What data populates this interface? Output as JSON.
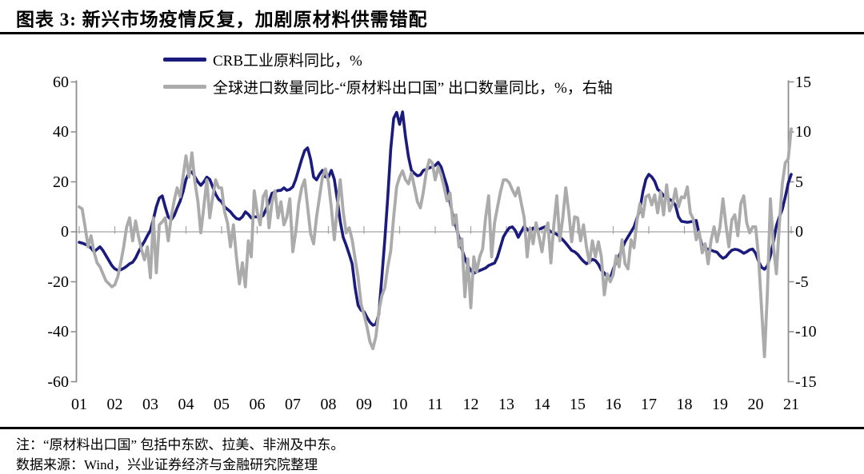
{
  "header": {
    "title": "图表 3: 新兴市场疫情反复，加剧原材料供需错配"
  },
  "legend": {
    "items": [
      {
        "label": "CRB工业原料同比，%",
        "color": "#1B1B7E"
      },
      {
        "label": "全球进口数量同比-“原材料出口国” 出口数量同比，%，右轴",
        "color": "#ABABAB"
      }
    ]
  },
  "axes": {
    "left_ticks": [
      "60",
      "40",
      "20",
      "0",
      "-20",
      "-40",
      "-60"
    ],
    "right_ticks": [
      "15",
      "10",
      "5",
      "0",
      "-5",
      "-10",
      "-15"
    ],
    "x_ticks": [
      "01",
      "02",
      "03",
      "04",
      "05",
      "06",
      "07",
      "08",
      "09",
      "10",
      "11",
      "12",
      "13",
      "14",
      "15",
      "16",
      "17",
      "18",
      "19",
      "20",
      "21"
    ]
  },
  "notes": {
    "line1": "注：“原材料出口国” 包括中东欧、拉美、非洲及中东。",
    "line2": "数据来源：Wind，兴业证券经济与金融研究院整理"
  },
  "chart_data": {
    "type": "line",
    "title": "图表 3: 新兴市场疫情反复，加剧原材料供需错配",
    "x_start": "2001-01",
    "x_end": "2021-01",
    "frequency": "monthly",
    "x_tick_years": [
      "01",
      "02",
      "03",
      "04",
      "05",
      "06",
      "07",
      "08",
      "09",
      "10",
      "11",
      "12",
      "13",
      "14",
      "15",
      "16",
      "17",
      "18",
      "19",
      "20",
      "21"
    ],
    "left_ylim": [
      -60,
      60
    ],
    "right_ylim": [
      -15,
      15
    ],
    "grid": "zero-line-only",
    "legend_position": "top-left",
    "series": [
      {
        "name": "CRB工业原料同比，%",
        "axis": "left",
        "color": "#1B1B7E",
        "values": [
          -4.2,
          -4.5,
          -5,
          -5.5,
          -6.5,
          -8,
          -7,
          -6,
          -7.5,
          -9.5,
          -11.5,
          -13.5,
          -14.8,
          -15.4,
          -15.2,
          -14.6,
          -13.8,
          -12.8,
          -12.2,
          -10.5,
          -8,
          -5.8,
          -3.8,
          -1.5,
          0.6,
          5,
          10,
          13.5,
          14.4,
          10,
          6,
          4.8,
          6.5,
          9.5,
          12.2,
          16,
          21,
          23.5,
          24,
          22,
          20,
          18.6,
          20,
          21.9,
          21,
          18,
          15,
          13,
          12,
          10,
          9,
          8,
          6.5,
          5.3,
          5,
          6,
          8,
          7,
          5.5,
          6,
          6,
          5.8,
          6.5,
          9,
          12,
          15.4,
          16,
          16.5,
          16.6,
          17.6,
          16.6,
          17,
          18,
          21,
          25,
          29,
          32.5,
          33.6,
          29,
          22,
          20.8,
          23,
          24.6,
          22,
          21.9,
          24.6,
          21,
          13,
          4.2,
          -2.2,
          -5.4,
          -9,
          -12.8,
          -22.4,
          -29.4,
          -31.4,
          -32,
          -34.2,
          -36.2,
          -37.4,
          -37,
          -33,
          -18.2,
          -3.2,
          13.8,
          33,
          45.4,
          47.8,
          43,
          48,
          38,
          30,
          24.6,
          23.4,
          22.4,
          22.8,
          24.6,
          25,
          25.6,
          26,
          26.6,
          27.8,
          26,
          22,
          18.2,
          12,
          6,
          2.2,
          -2.2,
          -7,
          -10.6,
          -13.5,
          -15.5,
          -16.6,
          -16,
          -15.5,
          -15,
          -14.5,
          -13.5,
          -13,
          -12.5,
          -10,
          -6,
          -2,
          0,
          1.6,
          2,
          0.5,
          -2.2,
          0,
          2.2,
          1,
          0,
          1.5,
          0.5,
          1,
          1.5,
          2,
          1,
          0,
          -0.5,
          -1,
          -2,
          -3.2,
          -4.5,
          -6,
          -7.5,
          -8,
          -9,
          -10.5,
          -11.8,
          -12.8,
          -12,
          -11,
          -11.5,
          -13,
          -15.4,
          -16.5,
          -18,
          -18.6,
          -15,
          -12,
          -9.6,
          -7,
          -4,
          -2,
          0,
          2,
          5.4,
          9,
          16,
          21,
          23,
          22,
          20.2,
          17,
          16,
          14.4,
          13.5,
          13,
          12.2,
          10.6,
          6,
          4.2,
          4,
          3.8,
          4,
          4.2,
          4.5,
          -1,
          -5.8,
          -6.5,
          -7,
          -7.4,
          -7.8,
          -8.2,
          -9.6,
          -10.6,
          -10,
          -8.5,
          -7.4,
          -7,
          -7.2,
          -7.8,
          -8.6,
          -8,
          -7.2,
          -6.9,
          -8.6,
          -11.8,
          -14.2,
          -15,
          -13.6,
          -9.6,
          -4,
          2.5,
          6,
          9,
          14,
          19.5,
          23
        ]
      },
      {
        "name": "全球进口数量同比-“原材料出口国” 出口数量同比，%，右轴",
        "axis": "right",
        "color": "#ABABAB",
        "values": [
          2.5,
          2.3,
          0.5,
          -1.5,
          -0.4,
          -2,
          -3.1,
          -3.5,
          -4.2,
          -4.9,
          -5.2,
          -5.5,
          -5.3,
          -4.5,
          -3.1,
          -1.5,
          0.5,
          1.4,
          -0.9,
          1.1,
          -0.5,
          -1.8,
          -2.8,
          -1.5,
          -4.6,
          1.4,
          -4.1,
          0.7,
          1,
          1.4,
          -0.9,
          1.5,
          3.1,
          4.4,
          3.5,
          5.5,
          7.6,
          5.5,
          7.9,
          5,
          3.1,
          -0.1,
          2.5,
          5.2,
          1.4,
          3.5,
          5.2,
          4.4,
          4.4,
          2,
          0.9,
          -1.5,
          0.7,
          -2.5,
          -5.2,
          -3.1,
          -5.5,
          -0.9,
          -2.5,
          4.1,
          2,
          0.7,
          3.5,
          4.1,
          0.4,
          3,
          4.1,
          1.4,
          3,
          0.7,
          1.5,
          3.3,
          -2,
          0,
          2.8,
          4.4,
          5.2,
          2.5,
          -0.2,
          -1.2,
          1.5,
          3.5,
          5.5,
          6.3,
          5,
          2.4,
          -0.8,
          2.4,
          5.2,
          2,
          -0.1,
          0.4,
          -0.8,
          -2.7,
          -4.5,
          -7.2,
          -8.3,
          -9.5,
          -11,
          -11.7,
          -10.5,
          -8,
          -6.4,
          -5.6,
          -3.5,
          -1.9,
          1.5,
          4.5,
          5.5,
          6.1,
          5.2,
          4.8,
          5.9,
          4.5,
          3,
          2.4,
          4,
          6,
          7.2,
          6.9,
          5.2,
          6.5,
          5.7,
          4.5,
          3.1,
          3.9,
          0.7,
          1.7,
          -1.5,
          -0.7,
          -6.5,
          -2.7,
          -7.6,
          -2.5,
          -4,
          -2.5,
          -1.7,
          1.4,
          3.6,
          -2.5,
          0.9,
          2.5,
          4,
          5.2,
          5.2,
          4.9,
          4.2,
          3.6,
          4.4,
          2.9,
          1.4,
          -2.5,
          0.4,
          -1.2,
          0.9,
          -0.5,
          -2,
          0.1,
          0.9,
          -3.1,
          0.7,
          3.6,
          -0.9,
          1.4,
          4.4,
          2,
          -1,
          1.5,
          1.4,
          -0.9,
          0.7,
          -1.5,
          -3.1,
          -0.9,
          -2.5,
          -1,
          -2.5,
          -6.3,
          -4.2,
          -5,
          -4.3,
          -2.4,
          -3.5,
          -0.8,
          -3.2,
          -3.7,
          -0.8,
          -1.6,
          1.1,
          2.8,
          1.5,
          3.5,
          3.7,
          2.7,
          3.7,
          1.9,
          4,
          1.7,
          4.7,
          2.1,
          2.8,
          4.3,
          2.5,
          3.5,
          3.4,
          4.5,
          1.9,
          1.3,
          -0.8,
          0,
          -2.1,
          -1.2,
          -3.2,
          -0.8,
          0.5,
          -1,
          0.5,
          3.3,
          0.7,
          -1.5,
          1.2,
          1.7,
          -0.4,
          2.8,
          3.6,
          0.9,
          -0.1,
          0.5,
          0.5,
          -2.5,
          -7.6,
          -12.5,
          -6,
          3.3,
          -1.5,
          -4.2,
          0.8,
          4.8,
          6.9,
          7.3,
          10.3
        ]
      }
    ]
  }
}
